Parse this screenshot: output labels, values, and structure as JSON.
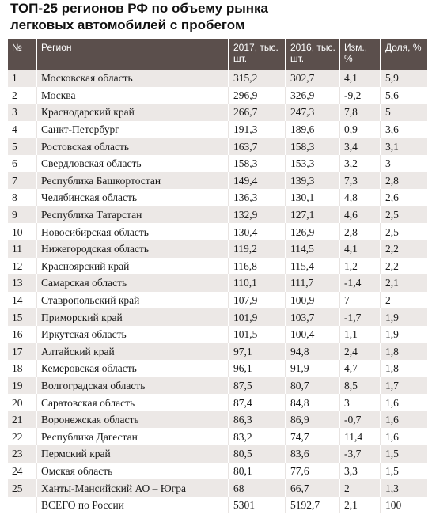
{
  "title_line1": "ТОП-25 регионов РФ по объему рынка",
  "title_line2": "легковых автомобилей с пробегом",
  "headers": {
    "num": "№",
    "region": "Регион",
    "y2017": "2017, тыс. шт.",
    "y2016": "2016, тыс. шт.",
    "change": "Изм., %",
    "share": "Доля, %"
  },
  "rows": [
    {
      "num": "1",
      "region": "Московская область",
      "y2017": "315,2",
      "y2016": "302,7",
      "change": "4,1",
      "share": "5,9"
    },
    {
      "num": "2",
      "region": "Москва",
      "y2017": "296,9",
      "y2016": "326,9",
      "change": "-9,2",
      "share": "5,6"
    },
    {
      "num": "3",
      "region": "Краснодарский край",
      "y2017": "266,7",
      "y2016": "247,3",
      "change": "7,8",
      "share": "5"
    },
    {
      "num": "4",
      "region": "Санкт-Петербург",
      "y2017": "191,3",
      "y2016": "189,6",
      "change": "0,9",
      "share": "3,6"
    },
    {
      "num": "5",
      "region": "Ростовская область",
      "y2017": "163,7",
      "y2016": "158,3",
      "change": "3,4",
      "share": "3,1"
    },
    {
      "num": "6",
      "region": "Свердловская область",
      "y2017": "158,3",
      "y2016": "153,3",
      "change": "3,2",
      "share": "3"
    },
    {
      "num": "7",
      "region": "Республика Башкортостан",
      "y2017": "149,4",
      "y2016": "139,3",
      "change": "7,3",
      "share": "2,8"
    },
    {
      "num": "8",
      "region": "Челябинская область",
      "y2017": "136,3",
      "y2016": "130,1",
      "change": "4,8",
      "share": "2,6"
    },
    {
      "num": "9",
      "region": "Республика Татарстан",
      "y2017": "132,9",
      "y2016": "127,1",
      "change": "4,6",
      "share": "2,5"
    },
    {
      "num": "10",
      "region": "Новосибирская область",
      "y2017": "130,4",
      "y2016": "126,9",
      "change": "2,8",
      "share": "2,5"
    },
    {
      "num": "11",
      "region": "Нижегородская область",
      "y2017": "119,2",
      "y2016": "114,5",
      "change": "4,1",
      "share": "2,2"
    },
    {
      "num": "12",
      "region": "Красноярский край",
      "y2017": "116,8",
      "y2016": "115,4",
      "change": "1,2",
      "share": "2,2"
    },
    {
      "num": "13",
      "region": "Самарская область",
      "y2017": "110,1",
      "y2016": "111,7",
      "change": "-1,4",
      "share": "2,1"
    },
    {
      "num": "14",
      "region": "Ставропольский край",
      "y2017": "107,9",
      "y2016": "100,9",
      "change": "7",
      "share": "2"
    },
    {
      "num": "15",
      "region": "Приморский край",
      "y2017": "101,9",
      "y2016": "103,7",
      "change": "-1,7",
      "share": "1,9"
    },
    {
      "num": "16",
      "region": "Иркутская область",
      "y2017": "101,5",
      "y2016": "100,4",
      "change": "1,1",
      "share": "1,9"
    },
    {
      "num": "17",
      "region": "Алтайский край",
      "y2017": "97,1",
      "y2016": "94,8",
      "change": "2,4",
      "share": "1,8"
    },
    {
      "num": "18",
      "region": "Кемеровская область",
      "y2017": "96,1",
      "y2016": "91,9",
      "change": "4,7",
      "share": "1,8"
    },
    {
      "num": "19",
      "region": "Волгоградская область",
      "y2017": "87,5",
      "y2016": "80,7",
      "change": "8,5",
      "share": "1,7"
    },
    {
      "num": "20",
      "region": "Саратовская область",
      "y2017": "87,4",
      "y2016": "84,8",
      "change": "3",
      "share": "1,6"
    },
    {
      "num": "21",
      "region": "Воронежская область",
      "y2017": "86,3",
      "y2016": "86,9",
      "change": "-0,7",
      "share": "1,6"
    },
    {
      "num": "22",
      "region": "Республика Дагестан",
      "y2017": "83,2",
      "y2016": "74,7",
      "change": "11,4",
      "share": "1,6"
    },
    {
      "num": "23",
      "region": "Пермский край",
      "y2017": "80,5",
      "y2016": "83,6",
      "change": "-3,7",
      "share": "1,5"
    },
    {
      "num": "24",
      "region": "Омская область",
      "y2017": "80,1",
      "y2016": "77,6",
      "change": "3,3",
      "share": "1,5"
    },
    {
      "num": "25",
      "region": "Ханты-Мансийский АО – Югра",
      "y2017": "68",
      "y2016": "66,7",
      "change": "2",
      "share": "1,3"
    }
  ],
  "total": {
    "num": "",
    "region": "ВСЕГО по России",
    "y2017": "5301",
    "y2016": "5192,7",
    "change": "2,1",
    "share": "100"
  }
}
